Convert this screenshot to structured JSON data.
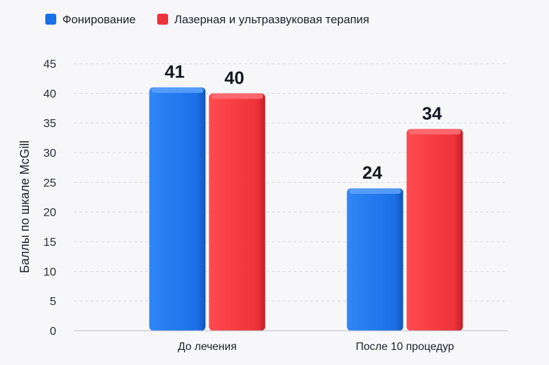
{
  "chart_data": {
    "type": "bar",
    "title": "",
    "xlabel": "",
    "ylabel": "Баллы по шкале McGill",
    "ylim": [
      0,
      45
    ],
    "yticks": [
      0,
      5,
      10,
      15,
      20,
      25,
      30,
      35,
      40,
      45
    ],
    "grid": true,
    "legend_position": "top-left",
    "categories": [
      "До лечения",
      "После 10 процедур"
    ],
    "series": [
      {
        "name": "Фонирование",
        "color": "#1a6fe6",
        "values": [
          41,
          24
        ]
      },
      {
        "name": "Лазерная и ультразвуковая терапия",
        "color": "#ee3239",
        "values": [
          40,
          34
        ]
      }
    ]
  }
}
